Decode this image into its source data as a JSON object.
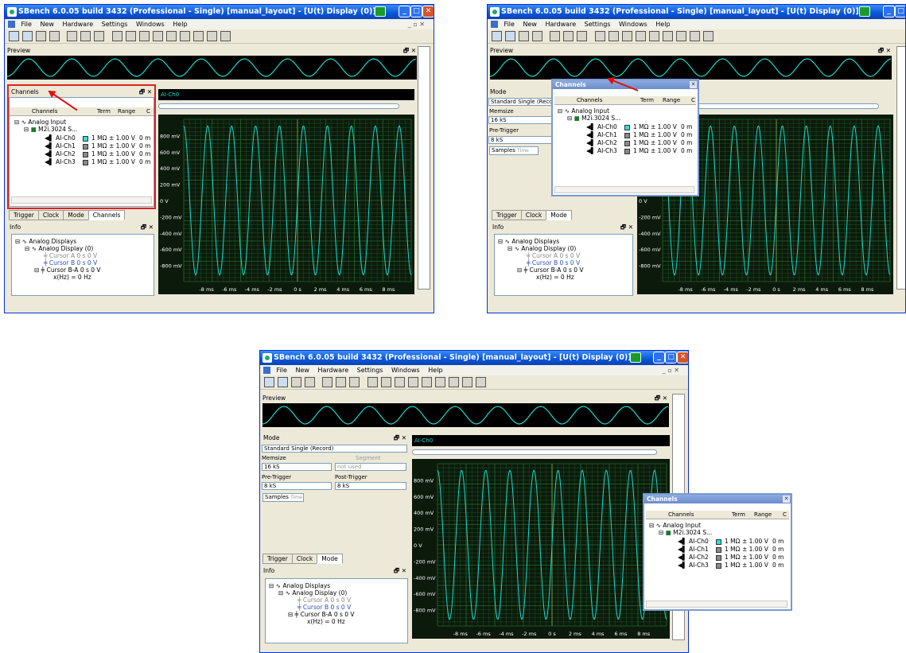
{
  "app": {
    "title": "SBench 6.0.05 build 3432 (Professional - Single)    [manual_layout] - [U(t) Display (0)]",
    "menu": [
      "File",
      "New",
      "Hardware",
      "Settings",
      "Windows",
      "Help"
    ]
  },
  "panes": {
    "preview": "Preview",
    "channels": "Channels",
    "mode": "Mode",
    "info": "Info"
  },
  "display": {
    "channel_label": "AI-Ch0",
    "y_ticks": [
      "800 mV",
      "600 mV",
      "400 mV",
      "200 mV",
      "0 V",
      "-200 mV",
      "-400 mV",
      "-600 mV",
      "-800 mV"
    ],
    "x_ticks": [
      "-8 ms",
      "-6 ms",
      "-4 ms",
      "-2 ms",
      "0 s",
      "2 ms",
      "4 ms",
      "6 ms",
      "8 ms"
    ],
    "trace_color": "#19d8cf",
    "grid_color": "#1f6b2a"
  },
  "channels": {
    "headers": [
      "Channels",
      "Term",
      "Range",
      "C"
    ],
    "group": "Analog Input",
    "device": "M2i.3024 S...",
    "rows": [
      {
        "name": "AI-Ch0",
        "term": "1 MΩ",
        "range": "± 1.00 V",
        "off": "0 m",
        "color": "#27e0e0"
      },
      {
        "name": "AI-Ch1",
        "term": "1 MΩ",
        "range": "± 1.00 V",
        "off": "0 m",
        "color": "#8a8a8a"
      },
      {
        "name": "AI-Ch2",
        "term": "1 MΩ",
        "range": "± 1.00 V",
        "off": "0 m",
        "color": "#8a8a8a"
      },
      {
        "name": "AI-Ch3",
        "term": "1 MΩ",
        "range": "± 1.00 V",
        "off": "0 m",
        "color": "#8a8a8a"
      }
    ]
  },
  "tabs": {
    "with_channels": [
      "Trigger",
      "Clock",
      "Mode",
      "Channels"
    ],
    "without_channels": [
      "Trigger",
      "Clock",
      "Mode"
    ]
  },
  "mode": {
    "mode_value": "Standard Single (Record)",
    "memsize_label": "Memsize",
    "memsize_value": "16 kS",
    "segment_label": "Segment",
    "segment_value": "not used",
    "pretrigger_label": "Pre-Trigger",
    "pretrigger_value": "8 kS",
    "posttrigger_label": "Post-Trigger",
    "posttrigger_value": "8 kS",
    "samples_label": "Samples",
    "time_label": "Time"
  },
  "info": {
    "root": "Analog Displays",
    "display": "Analog Display (0)",
    "cursor_a": "Cursor A  0 s  0 V",
    "cursor_b": "Cursor B  0 s  0 V",
    "cursor_ba": "Cursor B-A  0 s  0 V",
    "freq": "x(Hz) = 0 Hz"
  }
}
